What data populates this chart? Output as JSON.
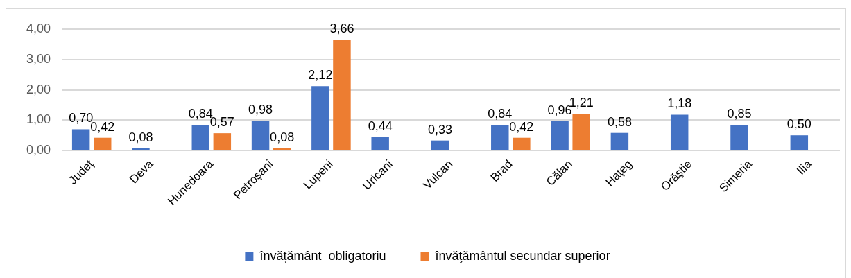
{
  "chart_data": {
    "type": "bar",
    "categories": [
      "Județ",
      "Deva",
      "Hunedoara",
      "Petroșani",
      "Lupeni",
      "Uricani",
      "Vulcan",
      "Brad",
      "Călan",
      "Haţeg",
      "Orăştie",
      "Simeria",
      "Ilia"
    ],
    "series": [
      {
        "name": "învățământ  obligatoriu",
        "color": "#4472c4",
        "values": [
          0.7,
          0.08,
          0.84,
          0.98,
          2.12,
          0.44,
          0.33,
          0.84,
          0.96,
          0.58,
          1.18,
          0.85,
          0.5
        ],
        "value_labels": [
          "0,70",
          "0,08",
          "0,84",
          "0,98",
          "2,12",
          "0,44",
          "0,33",
          "0,84",
          "0,96",
          "0,58",
          "1,18",
          "0,85",
          "0,50"
        ]
      },
      {
        "name": "învăţământul secundar superior",
        "color": "#ed7d31",
        "values": [
          0.42,
          null,
          0.57,
          0.08,
          3.66,
          null,
          null,
          0.42,
          1.21,
          null,
          null,
          null,
          null
        ],
        "value_labels": [
          "0,42",
          null,
          "0,57",
          "0,08",
          "3,66",
          null,
          null,
          "0,42",
          "1,21",
          null,
          null,
          null,
          null
        ]
      }
    ],
    "ylim": [
      0,
      4
    ],
    "yticks": [
      {
        "value": 0,
        "label": "0,00"
      },
      {
        "value": 1,
        "label": "1,00"
      },
      {
        "value": 2,
        "label": "2,00"
      },
      {
        "value": 3,
        "label": "3,00"
      },
      {
        "value": 4,
        "label": "4,00"
      }
    ],
    "grid": "y",
    "legend": "bottom"
  }
}
